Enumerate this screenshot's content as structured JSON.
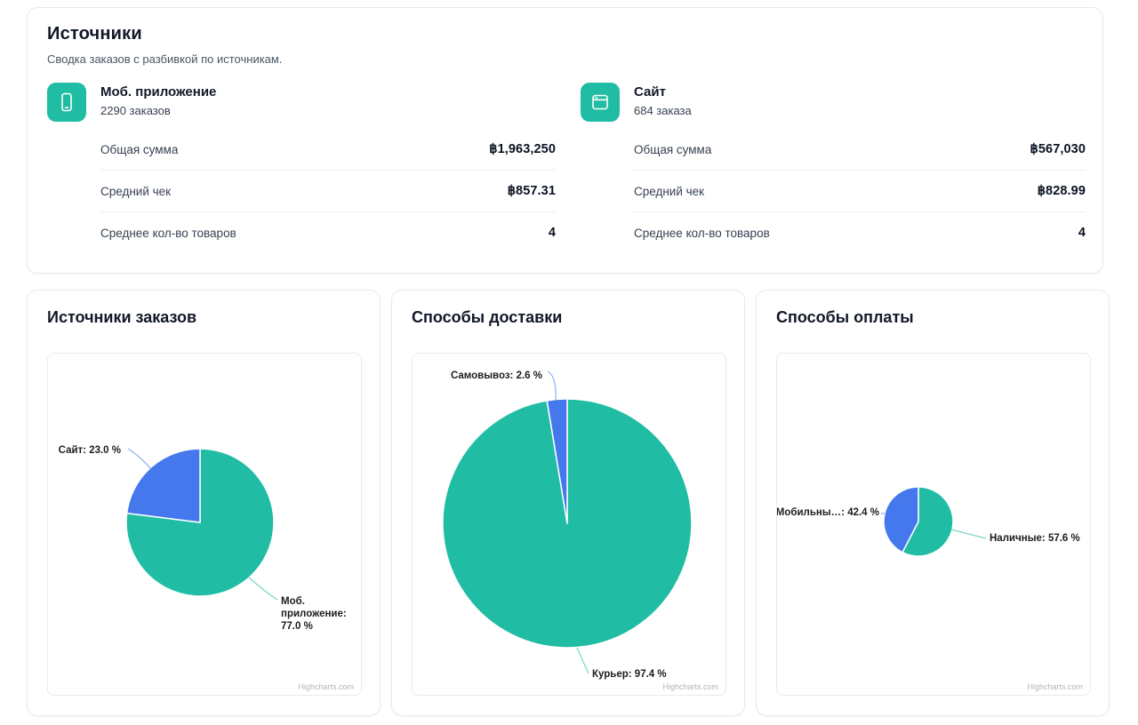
{
  "summary": {
    "title": "Источники",
    "subtitle": "Сводка заказов с разбивкой по источникам.",
    "sources": [
      {
        "icon": "mobile-app-icon",
        "name": "Моб. приложение",
        "orders": "2290 заказов",
        "stats": [
          {
            "label": "Общая сумма",
            "value": "฿1,963,250"
          },
          {
            "label": "Средний чек",
            "value": "฿857.31"
          },
          {
            "label": "Среднее кол-во товаров",
            "value": "4"
          }
        ]
      },
      {
        "icon": "website-icon",
        "name": "Сайт",
        "orders": "684 заказа",
        "stats": [
          {
            "label": "Общая сумма",
            "value": "฿567,030"
          },
          {
            "label": "Средний чек",
            "value": "฿828.99"
          },
          {
            "label": "Среднее кол-во товаров",
            "value": "4"
          }
        ]
      }
    ]
  },
  "colors": {
    "teal": "#20bda4",
    "blue": "#4478ec",
    "slice_border": "#ffffff"
  },
  "chart_data": [
    {
      "type": "pie",
      "title": "Источники заказов",
      "unit": "%",
      "legend": "off",
      "series": [
        {
          "name": "Моб. приложение",
          "value": 77.0,
          "color": "#20bda4"
        },
        {
          "name": "Сайт",
          "value": 23.0,
          "color": "#4478ec"
        }
      ],
      "credit": "Highcharts.com"
    },
    {
      "type": "pie",
      "title": "Способы доставки",
      "unit": "%",
      "legend": "off",
      "series": [
        {
          "name": "Курьер",
          "value": 97.4,
          "color": "#20bda4"
        },
        {
          "name": "Самовывоз",
          "value": 2.6,
          "color": "#4478ec"
        }
      ],
      "credit": "Highcharts.com"
    },
    {
      "type": "pie",
      "title": "Способы оплаты",
      "unit": "%",
      "legend": "off",
      "series": [
        {
          "name": "Наличные",
          "value": 57.6,
          "color": "#20bda4"
        },
        {
          "name": "Мобильны…",
          "value": 42.4,
          "color": "#4478ec"
        }
      ],
      "credit": "Highcharts.com"
    }
  ]
}
